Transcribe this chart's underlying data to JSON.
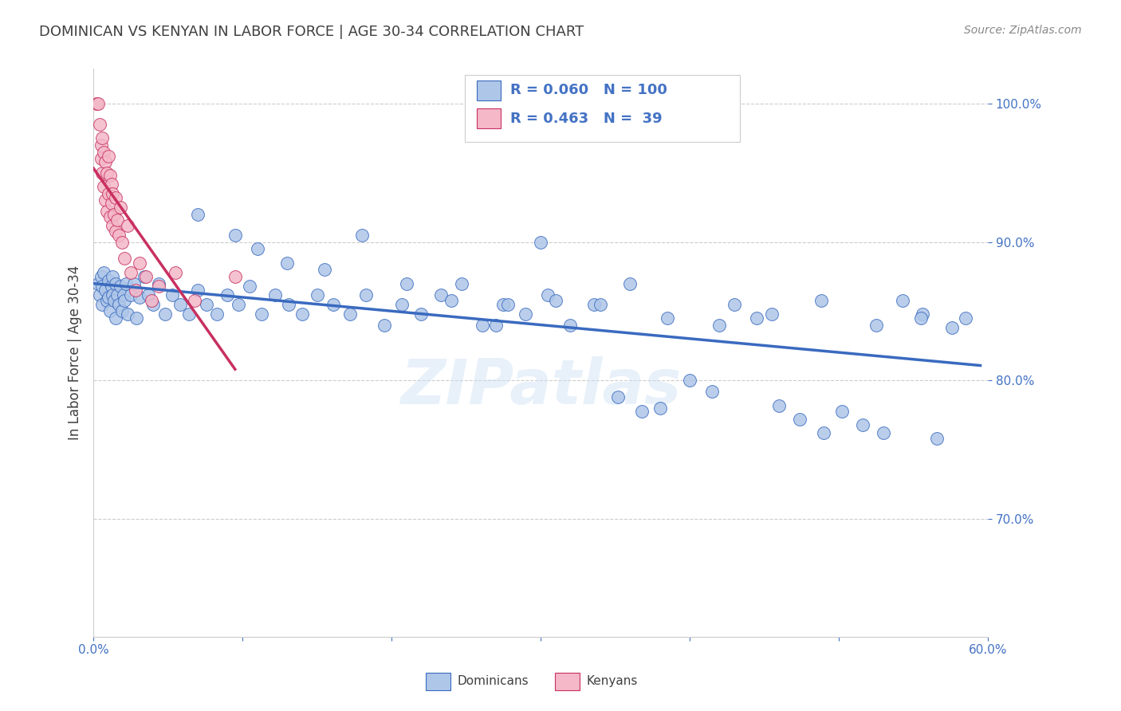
{
  "title": "DOMINICAN VS KENYAN IN LABOR FORCE | AGE 30-34 CORRELATION CHART",
  "source": "Source: ZipAtlas.com",
  "ylabel": "In Labor Force | Age 30-34",
  "watermark": "ZIPatlas",
  "dominican_R": 0.06,
  "dominican_N": 100,
  "kenyan_R": 0.463,
  "kenyan_N": 39,
  "dominican_color": "#aec6e8",
  "kenyan_color": "#f4b8c8",
  "dominican_line_color": "#3a6abf",
  "kenyan_line_color": "#c83060",
  "text_color": "#4472c4",
  "title_color": "#404040",
  "source_color": "#888888",
  "xlim": [
    0.0,
    0.6
  ],
  "ylim": [
    0.615,
    1.025
  ],
  "x_ticks": [
    0.0,
    0.1,
    0.2,
    0.3,
    0.4,
    0.5,
    0.6
  ],
  "y_ticks": [
    0.7,
    0.8,
    0.9,
    1.0
  ],
  "dominican_x": [
    0.003,
    0.004,
    0.005,
    0.006,
    0.006,
    0.007,
    0.008,
    0.009,
    0.01,
    0.01,
    0.011,
    0.012,
    0.013,
    0.013,
    0.014,
    0.015,
    0.015,
    0.016,
    0.017,
    0.018,
    0.019,
    0.02,
    0.021,
    0.022,
    0.023,
    0.025,
    0.027,
    0.029,
    0.031,
    0.034,
    0.037,
    0.04,
    0.044,
    0.048,
    0.053,
    0.058,
    0.064,
    0.07,
    0.076,
    0.083,
    0.09,
    0.097,
    0.105,
    0.113,
    0.122,
    0.131,
    0.14,
    0.15,
    0.161,
    0.172,
    0.183,
    0.195,
    0.207,
    0.22,
    0.233,
    0.247,
    0.261,
    0.275,
    0.29,
    0.305,
    0.32,
    0.336,
    0.352,
    0.368,
    0.385,
    0.4,
    0.415,
    0.43,
    0.445,
    0.46,
    0.474,
    0.488,
    0.502,
    0.516,
    0.53,
    0.543,
    0.556,
    0.566,
    0.576,
    0.585,
    0.07,
    0.095,
    0.11,
    0.13,
    0.155,
    0.18,
    0.21,
    0.24,
    0.27,
    0.3,
    0.34,
    0.38,
    0.42,
    0.455,
    0.49,
    0.525,
    0.555,
    0.278,
    0.31,
    0.36
  ],
  "dominican_y": [
    0.87,
    0.862,
    0.875,
    0.868,
    0.855,
    0.878,
    0.865,
    0.858,
    0.872,
    0.86,
    0.85,
    0.868,
    0.862,
    0.875,
    0.858,
    0.87,
    0.845,
    0.862,
    0.855,
    0.868,
    0.85,
    0.862,
    0.858,
    0.87,
    0.848,
    0.862,
    0.87,
    0.845,
    0.86,
    0.875,
    0.862,
    0.855,
    0.87,
    0.848,
    0.862,
    0.855,
    0.848,
    0.865,
    0.855,
    0.848,
    0.862,
    0.855,
    0.868,
    0.848,
    0.862,
    0.855,
    0.848,
    0.862,
    0.855,
    0.848,
    0.862,
    0.84,
    0.855,
    0.848,
    0.862,
    0.87,
    0.84,
    0.855,
    0.848,
    0.862,
    0.84,
    0.855,
    0.788,
    0.778,
    0.845,
    0.8,
    0.792,
    0.855,
    0.845,
    0.782,
    0.772,
    0.858,
    0.778,
    0.768,
    0.762,
    0.858,
    0.848,
    0.758,
    0.838,
    0.845,
    0.92,
    0.905,
    0.895,
    0.885,
    0.88,
    0.905,
    0.87,
    0.858,
    0.84,
    0.9,
    0.855,
    0.78,
    0.84,
    0.848,
    0.762,
    0.84,
    0.845,
    0.855,
    0.858,
    0.87
  ],
  "kenyan_x": [
    0.002,
    0.003,
    0.004,
    0.005,
    0.005,
    0.006,
    0.006,
    0.007,
    0.007,
    0.008,
    0.008,
    0.009,
    0.009,
    0.01,
    0.01,
    0.011,
    0.011,
    0.012,
    0.012,
    0.013,
    0.013,
    0.014,
    0.015,
    0.015,
    0.016,
    0.017,
    0.018,
    0.019,
    0.021,
    0.023,
    0.025,
    0.028,
    0.031,
    0.035,
    0.039,
    0.044,
    0.055,
    0.068,
    0.095
  ],
  "kenyan_y": [
    1.0,
    1.0,
    0.985,
    0.97,
    0.96,
    0.975,
    0.95,
    0.965,
    0.94,
    0.958,
    0.93,
    0.95,
    0.922,
    0.962,
    0.935,
    0.948,
    0.918,
    0.942,
    0.928,
    0.912,
    0.935,
    0.92,
    0.908,
    0.932,
    0.916,
    0.905,
    0.925,
    0.9,
    0.888,
    0.912,
    0.878,
    0.865,
    0.885,
    0.875,
    0.858,
    0.868,
    0.878,
    0.858,
    0.875
  ]
}
